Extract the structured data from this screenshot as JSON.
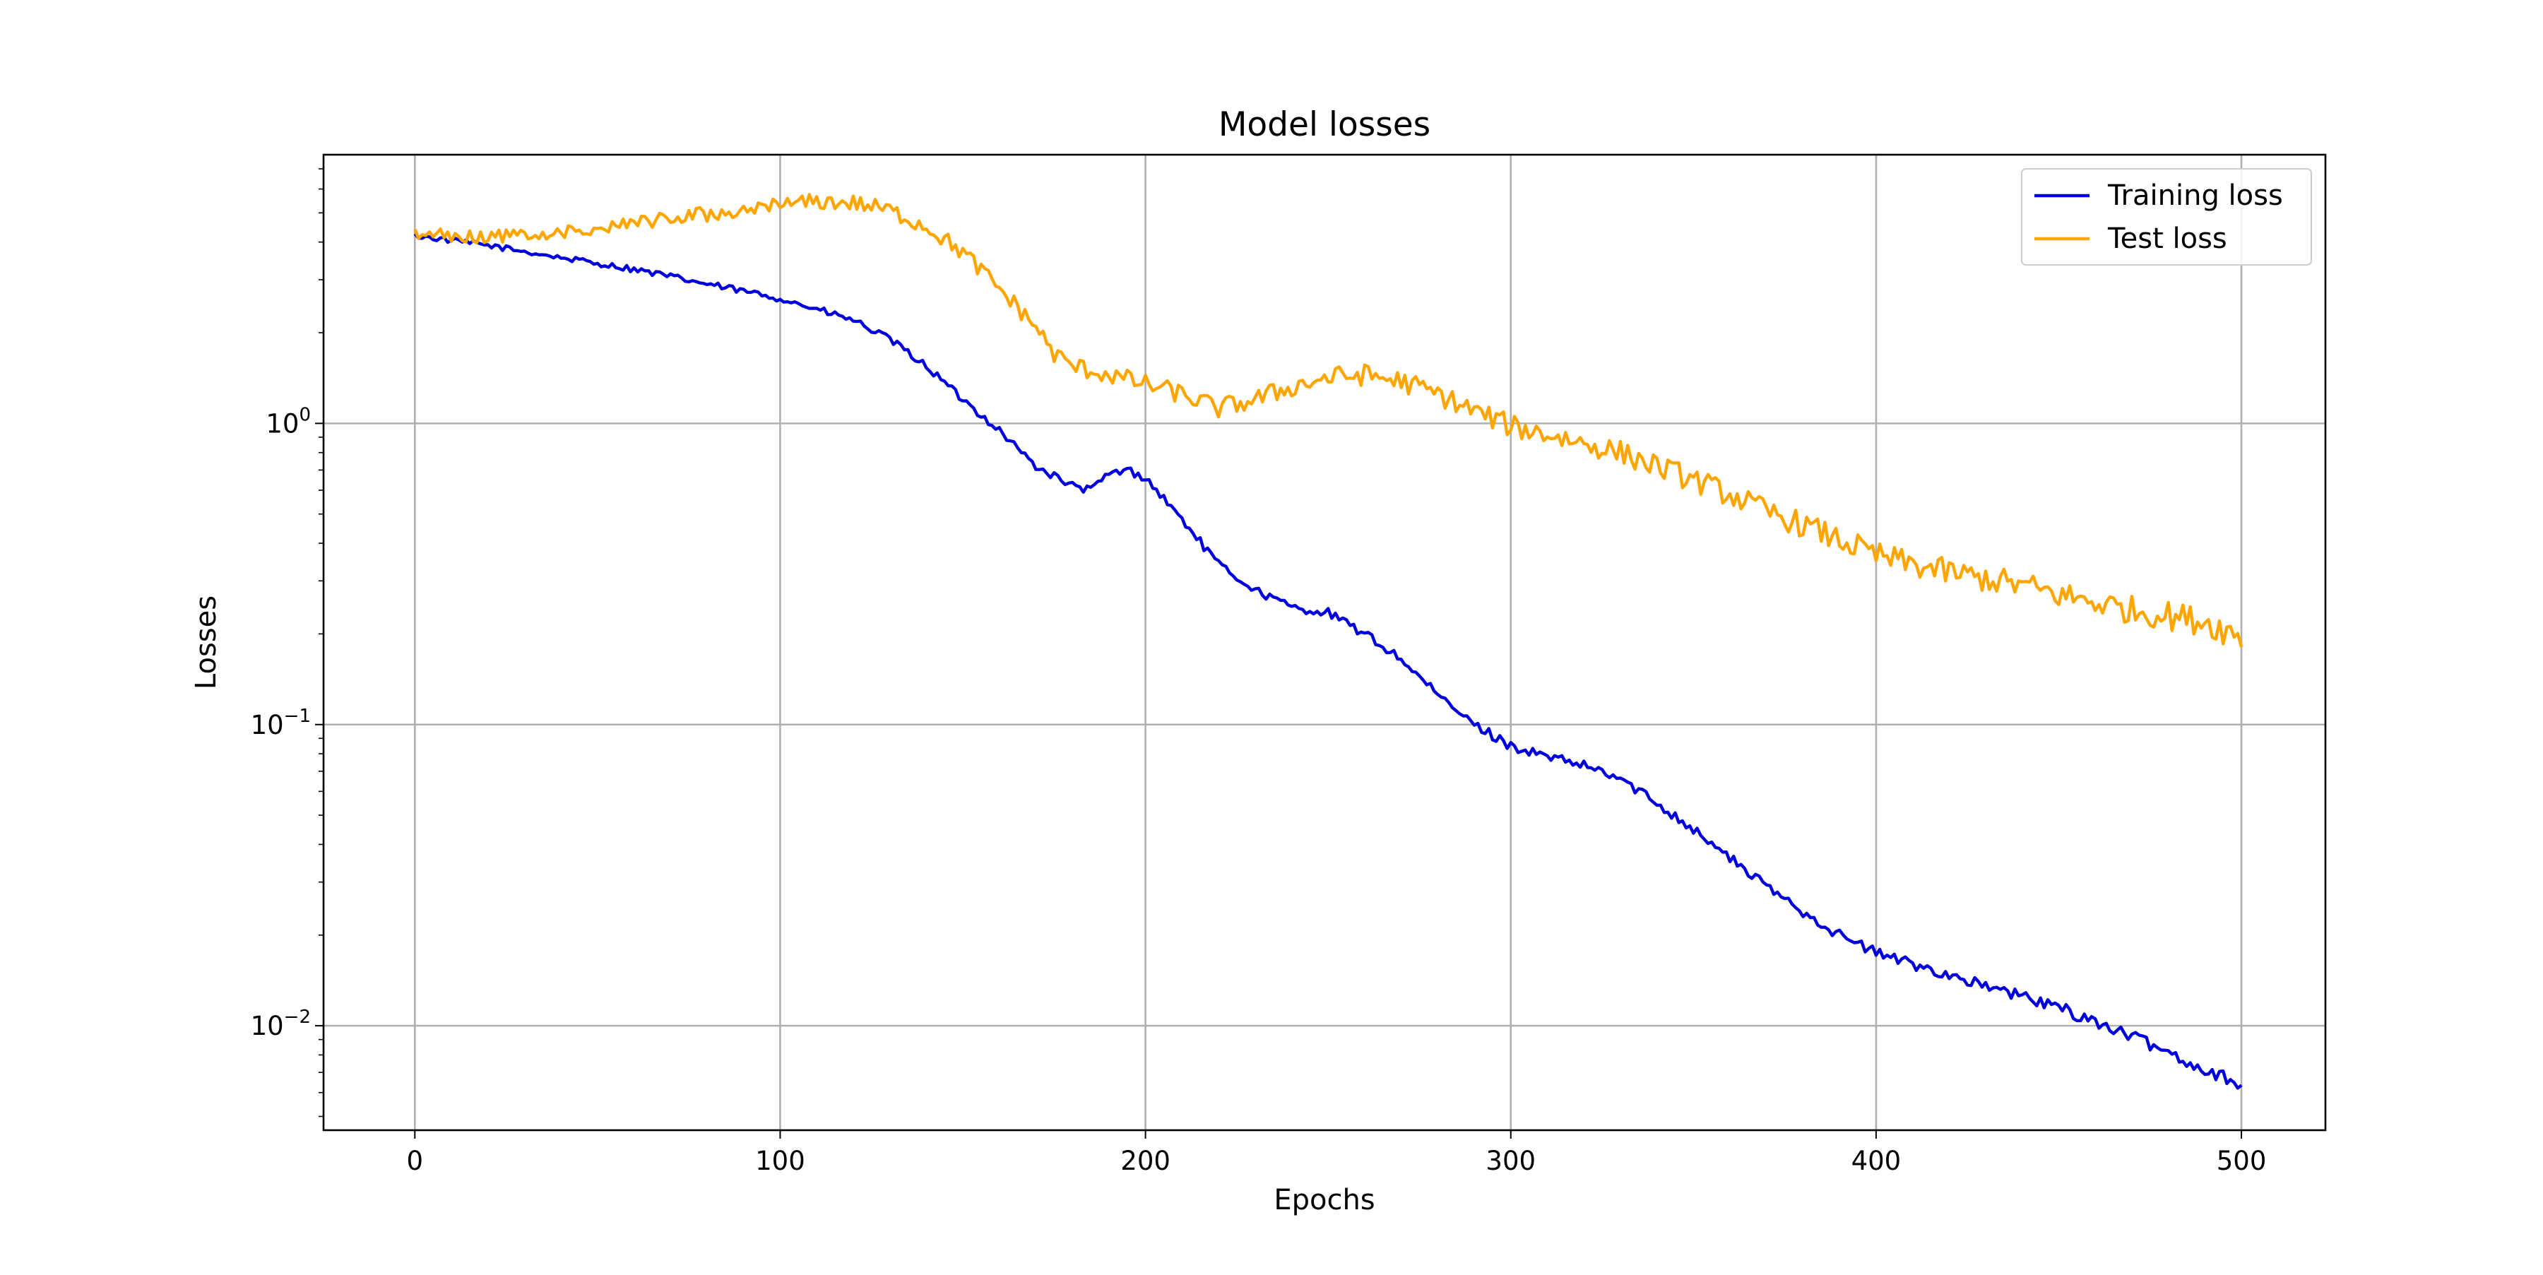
{
  "chart_data": {
    "type": "line",
    "title": "Model losses",
    "xlabel": "Epochs",
    "ylabel": "Losses",
    "xlim": [
      -25,
      523
    ],
    "xticks": [
      0,
      100,
      200,
      300,
      400,
      500
    ],
    "yscale": "log",
    "ylim": [
      0.0045,
      7.8
    ],
    "yticks": [
      {
        "value": 1,
        "base": "10",
        "exp": "0"
      },
      {
        "value": 0.1,
        "base": "10",
        "exp": "−1"
      },
      {
        "value": 0.01,
        "base": "10",
        "exp": "−2"
      }
    ],
    "grid": true,
    "legend_position": "top-right",
    "series": [
      {
        "name": "Training loss",
        "color": "#0000dd",
        "anchors": [
          [
            0,
            4.2
          ],
          [
            20,
            3.9
          ],
          [
            40,
            3.55
          ],
          [
            60,
            3.25
          ],
          [
            80,
            2.9
          ],
          [
            100,
            2.6
          ],
          [
            120,
            2.2
          ],
          [
            130,
            1.9
          ],
          [
            140,
            1.55
          ],
          [
            150,
            1.2
          ],
          [
            160,
            0.95
          ],
          [
            170,
            0.72
          ],
          [
            180,
            0.62
          ],
          [
            185,
            0.6
          ],
          [
            190,
            0.68
          ],
          [
            195,
            0.7
          ],
          [
            200,
            0.66
          ],
          [
            210,
            0.48
          ],
          [
            220,
            0.34
          ],
          [
            230,
            0.28
          ],
          [
            240,
            0.245
          ],
          [
            250,
            0.235
          ],
          [
            260,
            0.2
          ],
          [
            270,
            0.165
          ],
          [
            280,
            0.125
          ],
          [
            290,
            0.1
          ],
          [
            300,
            0.085
          ],
          [
            310,
            0.078
          ],
          [
            320,
            0.073
          ],
          [
            330,
            0.066
          ],
          [
            340,
            0.055
          ],
          [
            350,
            0.045
          ],
          [
            360,
            0.036
          ],
          [
            370,
            0.029
          ],
          [
            380,
            0.024
          ],
          [
            390,
            0.02
          ],
          [
            400,
            0.0175
          ],
          [
            410,
            0.016
          ],
          [
            420,
            0.0148
          ],
          [
            430,
            0.0135
          ],
          [
            440,
            0.0125
          ],
          [
            450,
            0.0115
          ],
          [
            460,
            0.0103
          ],
          [
            470,
            0.0092
          ],
          [
            480,
            0.0082
          ],
          [
            490,
            0.0071
          ],
          [
            495,
            0.0068
          ],
          [
            500,
            0.0064
          ]
        ],
        "noise": 0.03
      },
      {
        "name": "Test loss",
        "color": "#ffa500",
        "anchors": [
          [
            0,
            4.25
          ],
          [
            20,
            4.15
          ],
          [
            40,
            4.3
          ],
          [
            60,
            4.6
          ],
          [
            80,
            4.95
          ],
          [
            100,
            5.3
          ],
          [
            110,
            5.45
          ],
          [
            120,
            5.4
          ],
          [
            130,
            5.1
          ],
          [
            140,
            4.5
          ],
          [
            150,
            3.7
          ],
          [
            160,
            2.8
          ],
          [
            170,
            2.1
          ],
          [
            175,
            1.7
          ],
          [
            180,
            1.55
          ],
          [
            190,
            1.45
          ],
          [
            200,
            1.35
          ],
          [
            210,
            1.25
          ],
          [
            220,
            1.12
          ],
          [
            230,
            1.2
          ],
          [
            240,
            1.32
          ],
          [
            250,
            1.42
          ],
          [
            260,
            1.45
          ],
          [
            270,
            1.38
          ],
          [
            280,
            1.25
          ],
          [
            290,
            1.1
          ],
          [
            300,
            0.98
          ],
          [
            310,
            0.92
          ],
          [
            320,
            0.86
          ],
          [
            330,
            0.8
          ],
          [
            340,
            0.72
          ],
          [
            350,
            0.65
          ],
          [
            360,
            0.58
          ],
          [
            370,
            0.51
          ],
          [
            380,
            0.46
          ],
          [
            390,
            0.41
          ],
          [
            400,
            0.365
          ],
          [
            410,
            0.34
          ],
          [
            420,
            0.32
          ],
          [
            430,
            0.305
          ],
          [
            440,
            0.29
          ],
          [
            450,
            0.27
          ],
          [
            460,
            0.255
          ],
          [
            470,
            0.24
          ],
          [
            480,
            0.23
          ],
          [
            490,
            0.22
          ],
          [
            500,
            0.195
          ]
        ],
        "noise": 0.07
      }
    ]
  }
}
